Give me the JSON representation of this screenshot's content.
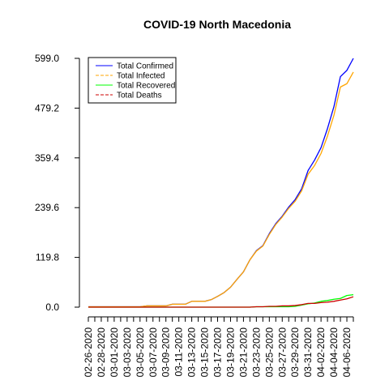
{
  "chart_data": {
    "type": "line",
    "title": "COVID-19 North Macedonia",
    "xlabel": "",
    "ylabel": "",
    "ylim": [
      0,
      599
    ],
    "y_ticks": [
      "0.0",
      "119.8",
      "239.6",
      "359.4",
      "479.2",
      "599.0"
    ],
    "x": [
      "02-26-2020",
      "02-27-2020",
      "02-28-2020",
      "02-29-2020",
      "03-01-2020",
      "03-02-2020",
      "03-03-2020",
      "03-04-2020",
      "03-05-2020",
      "03-06-2020",
      "03-07-2020",
      "03-08-2020",
      "03-09-2020",
      "03-10-2020",
      "03-11-2020",
      "03-12-2020",
      "03-13-2020",
      "03-14-2020",
      "03-15-2020",
      "03-16-2020",
      "03-17-2020",
      "03-18-2020",
      "03-19-2020",
      "03-20-2020",
      "03-21-2020",
      "03-22-2020",
      "03-23-2020",
      "03-24-2020",
      "03-25-2020",
      "03-26-2020",
      "03-27-2020",
      "03-28-2020",
      "03-29-2020",
      "03-30-2020",
      "03-31-2020",
      "04-01-2020",
      "04-02-2020",
      "04-03-2020",
      "04-04-2020",
      "04-05-2020",
      "04-06-2020",
      "04-07-2020"
    ],
    "x_tick_labels": [
      "02-26-2020",
      "02-28-2020",
      "03-01-2020",
      "03-03-2020",
      "03-05-2020",
      "03-07-2020",
      "03-09-2020",
      "03-11-2020",
      "03-13-2020",
      "03-15-2020",
      "03-17-2020",
      "03-19-2020",
      "03-21-2020",
      "03-23-2020",
      "03-25-2020",
      "03-27-2020",
      "03-29-2020",
      "03-31-2020",
      "04-02-2020",
      "04-04-2020",
      "04-06-2020"
    ],
    "legend_position": "top-left",
    "grid": false,
    "series": [
      {
        "name": "Total Confirmed",
        "color": "#0000ff",
        "values": [
          1,
          1,
          1,
          1,
          1,
          1,
          1,
          1,
          1,
          3,
          3,
          3,
          3,
          7,
          7,
          7,
          14,
          14,
          14,
          18,
          26,
          35,
          48,
          67,
          85,
          114,
          136,
          148,
          177,
          201,
          219,
          241,
          259,
          285,
          329,
          354,
          384,
          430,
          483,
          555,
          570,
          599
        ]
      },
      {
        "name": "Total Infected",
        "color": "#ffa500",
        "dashed": true,
        "values": [
          1,
          1,
          1,
          1,
          1,
          1,
          1,
          1,
          1,
          3,
          3,
          3,
          3,
          7,
          7,
          7,
          14,
          14,
          14,
          18,
          26,
          35,
          48,
          67,
          85,
          114,
          135,
          147,
          175,
          199,
          217,
          238,
          255,
          280,
          320,
          341,
          370,
          412,
          462,
          530,
          538,
          566
        ]
      },
      {
        "name": "Total Recovered",
        "color": "#00ff00",
        "values": [
          0,
          0,
          0,
          0,
          0,
          0,
          0,
          0,
          0,
          0,
          0,
          0,
          0,
          0,
          0,
          0,
          0,
          0,
          0,
          0,
          0,
          0,
          0,
          0,
          0,
          0,
          1,
          1,
          1,
          1,
          1,
          1,
          2,
          5,
          8,
          10,
          14,
          16,
          19,
          21,
          28,
          30
        ]
      },
      {
        "name": "Total Deaths",
        "color": "#cc0000",
        "dashed": true,
        "values": [
          0,
          0,
          0,
          0,
          0,
          0,
          0,
          0,
          0,
          0,
          0,
          0,
          0,
          0,
          0,
          0,
          0,
          0,
          0,
          0,
          0,
          0,
          0,
          0,
          0,
          0,
          1,
          1,
          2,
          2,
          3,
          3,
          4,
          6,
          9,
          9,
          11,
          12,
          14,
          17,
          20,
          25
        ]
      }
    ]
  }
}
